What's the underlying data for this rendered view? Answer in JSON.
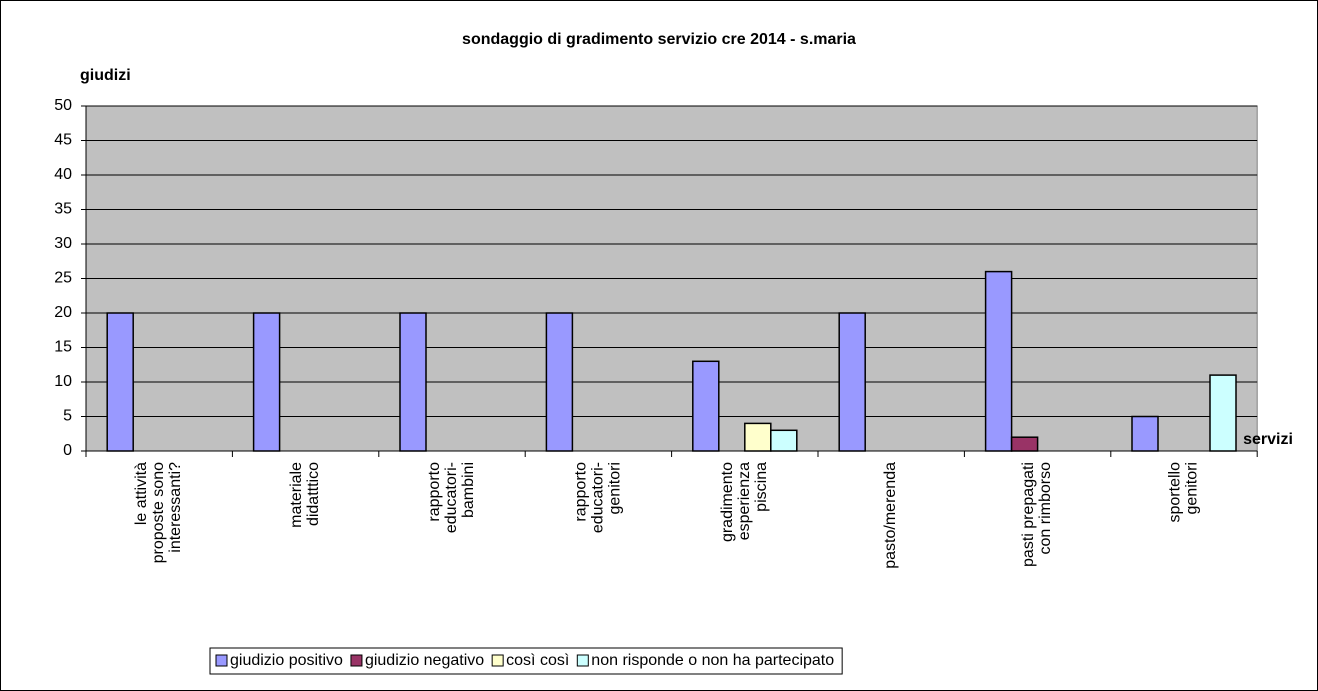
{
  "chart_data": {
    "type": "bar",
    "title": "sondaggio di gradimento servizio cre 2014 - s.maria",
    "y_axis_label": "giudizi",
    "x_axis_label": "servizi",
    "categories": [
      "le attività\nproposte sono\ninteressanti?",
      "materiale\ndidatttico",
      "rapporto\neducatori-\nbambini",
      "rapporto\neducatori-\ngenitori",
      "gradimento\nesperienza\npiscina",
      "pasto/merenda",
      "pasti prepagati\ncon rimborso",
      "sportello\ngenitori"
    ],
    "series": [
      {
        "name": "giudizio positivo",
        "color": "#9999ff",
        "values": [
          20,
          20,
          20,
          20,
          13,
          20,
          26,
          5
        ]
      },
      {
        "name": "giudizio negativo",
        "color": "#993366",
        "values": [
          0,
          0,
          0,
          0,
          0,
          0,
          2,
          0
        ]
      },
      {
        "name": "così così",
        "color": "#ffffcc",
        "values": [
          0,
          0,
          0,
          0,
          4,
          0,
          0,
          0
        ]
      },
      {
        "name": "non risponde o non ha partecipato",
        "color": "#ccffff",
        "values": [
          0,
          0,
          0,
          0,
          3,
          0,
          0,
          11
        ]
      }
    ],
    "ylim": [
      0,
      50
    ],
    "yticks": [
      0,
      5,
      10,
      15,
      20,
      25,
      30,
      35,
      40,
      45,
      50
    ],
    "grid": true,
    "legend": "bottom"
  }
}
